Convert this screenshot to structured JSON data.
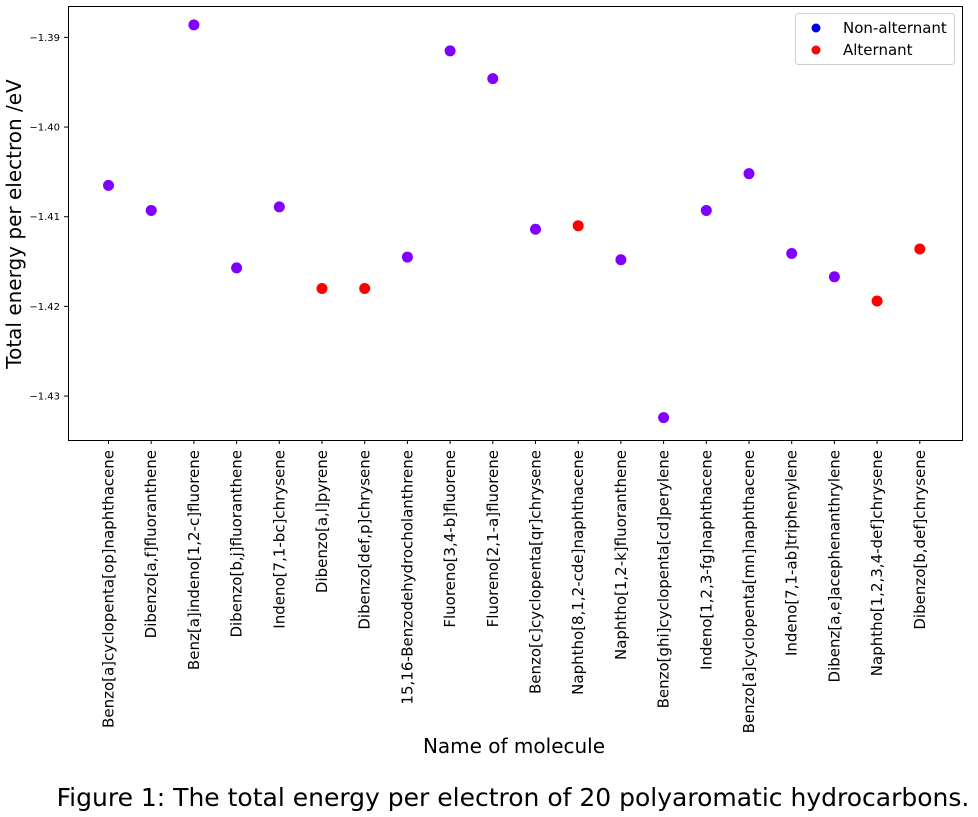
{
  "caption": "Figure 1: The total energy per electron of 20 polyaromatic hydrocarbons.",
  "chart_data": {
    "type": "scatter",
    "xlabel": "Name of molecule",
    "ylabel": "Total energy per electron /eV",
    "ylim": [
      -1.4349,
      -1.3865
    ],
    "yticks": [
      -1.39,
      -1.4,
      -1.41,
      -1.42,
      -1.43
    ],
    "ytick_labels": [
      "−1.39",
      "−1.40",
      "−1.41",
      "−1.42",
      "−1.43"
    ],
    "grid": false,
    "legend_placement": "top-right",
    "legend": [
      {
        "label": "Non-alternant",
        "color": "#0000e6"
      },
      {
        "label": "Alternant",
        "color": "#ff0000"
      }
    ],
    "point_colors": {
      "Non-alternant": "#8000ff",
      "Alternant": "#ff0000"
    },
    "categories": [
      "Benzo[a]cyclopenta[op]naphthacene",
      "Dibenzo[a,f]fluoranthene",
      "Benz[a]indeno[1,2-c]fluorene",
      "Dibenzo[b,j]fluoranthene",
      "Indeno[7,1-bc]chrysene",
      "Dibenzo[a,l]pyrene",
      "Dibenzo[def,p]chrysene",
      "15,16-Benzodehydrocholanthrene",
      "Fluoreno[3,4-b]fluorene",
      "Fluoreno[2,1-a]fluorene",
      "Benzo[c]cyclopenta[qr]chrysene",
      "Naphtho[8,1,2-cde]naphthacene",
      "Naphtho[1,2-k]fluoranthene",
      "Benzo[ghi]cyclopenta[cd]perylene",
      "Indeno[1,2,3-fg]naphthacene",
      "Benzo[a]cyclopenta[mn]naphthacene",
      "Indeno[7,1-ab]triphenylene",
      "Dibenz[a,e]acephenanthrylene",
      "Naphtho[1,2,3,4-def]chrysene",
      "Dibenzo[b,def]chrysene"
    ],
    "values": [
      -1.4065,
      -1.4093,
      -1.3886,
      -1.4157,
      -1.4089,
      -1.418,
      -1.418,
      -1.4145,
      -1.3915,
      -1.3946,
      -1.4114,
      -1.411,
      -1.4148,
      -1.4324,
      -1.4093,
      -1.4052,
      -1.4141,
      -1.4167,
      -1.4194,
      -1.4136
    ],
    "classes": [
      "Non-alternant",
      "Non-alternant",
      "Non-alternant",
      "Non-alternant",
      "Non-alternant",
      "Alternant",
      "Alternant",
      "Non-alternant",
      "Non-alternant",
      "Non-alternant",
      "Non-alternant",
      "Alternant",
      "Non-alternant",
      "Non-alternant",
      "Non-alternant",
      "Non-alternant",
      "Non-alternant",
      "Non-alternant",
      "Alternant",
      "Alternant"
    ]
  }
}
